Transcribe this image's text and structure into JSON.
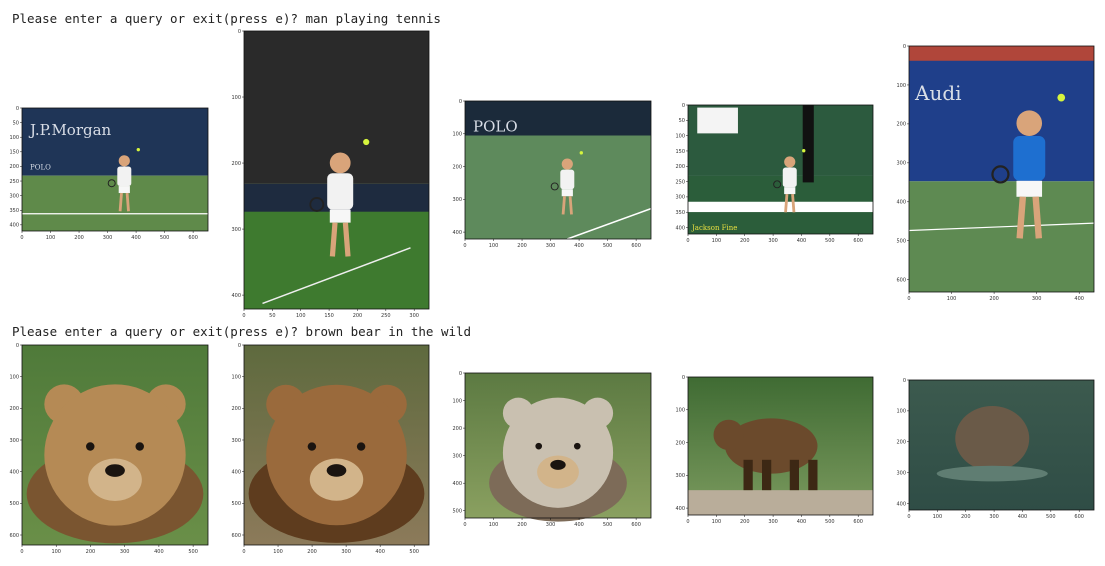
{
  "prompts": [
    {
      "text": "Please enter a query or exit(press e)? man playing tennis"
    },
    {
      "text": "Please enter a query or exit(press e)? brown bear in the wild"
    }
  ],
  "results": [
    {
      "row": 0,
      "scene": "tennis",
      "overlay_text": [
        "J.P.Morgan",
        "POLO"
      ],
      "xticks": [
        "0",
        "100",
        "200",
        "300",
        "400",
        "500",
        "600"
      ],
      "yticks": [
        "0",
        "50",
        "100",
        "150",
        "200",
        "250",
        "300",
        "350",
        "400"
      ]
    },
    {
      "row": 0,
      "scene": "tennis-serve",
      "overlay_text": [],
      "xticks": [
        "0",
        "50",
        "100",
        "150",
        "200",
        "250",
        "300"
      ],
      "yticks": [
        "0",
        "100",
        "200",
        "300",
        "400"
      ]
    },
    {
      "row": 0,
      "scene": "tennis-green",
      "overlay_text": [
        "POLO"
      ],
      "xticks": [
        "0",
        "100",
        "200",
        "300",
        "400",
        "500",
        "600"
      ],
      "yticks": [
        "0",
        "100",
        "200",
        "300",
        "400"
      ]
    },
    {
      "row": 0,
      "scene": "tennis-curtain",
      "overlay_text": [
        "Jackson Fine"
      ],
      "xticks": [
        "0",
        "100",
        "200",
        "300",
        "400",
        "500",
        "600"
      ],
      "yticks": [
        "0",
        "50",
        "100",
        "150",
        "200",
        "250",
        "300",
        "350",
        "400"
      ]
    },
    {
      "row": 0,
      "scene": "tennis-audi",
      "overlay_text": [
        "Audi"
      ],
      "xticks": [
        "0",
        "100",
        "200",
        "300",
        "400"
      ],
      "yticks": [
        "0",
        "100",
        "200",
        "300",
        "400",
        "500",
        "600"
      ]
    },
    {
      "row": 1,
      "scene": "bear-1",
      "xticks": [
        "0",
        "100",
        "200",
        "300",
        "400",
        "500"
      ],
      "yticks": [
        "0",
        "100",
        "200",
        "300",
        "400",
        "500",
        "600"
      ]
    },
    {
      "row": 1,
      "scene": "bear-2",
      "xticks": [
        "0",
        "100",
        "200",
        "300",
        "400",
        "500"
      ],
      "yticks": [
        "0",
        "100",
        "200",
        "300",
        "400",
        "500",
        "600"
      ]
    },
    {
      "row": 1,
      "scene": "bear-3",
      "xticks": [
        "0",
        "100",
        "200",
        "300",
        "400",
        "500",
        "600"
      ],
      "yticks": [
        "0",
        "100",
        "200",
        "300",
        "400",
        "500"
      ]
    },
    {
      "row": 1,
      "scene": "bear-4",
      "xticks": [
        "0",
        "100",
        "200",
        "300",
        "400",
        "500",
        "600"
      ],
      "yticks": [
        "0",
        "100",
        "200",
        "300",
        "400"
      ]
    },
    {
      "row": 1,
      "scene": "bear-5",
      "xticks": [
        "0",
        "100",
        "200",
        "300",
        "400",
        "500",
        "600"
      ],
      "yticks": [
        "0",
        "100",
        "200",
        "300",
        "400"
      ]
    }
  ]
}
